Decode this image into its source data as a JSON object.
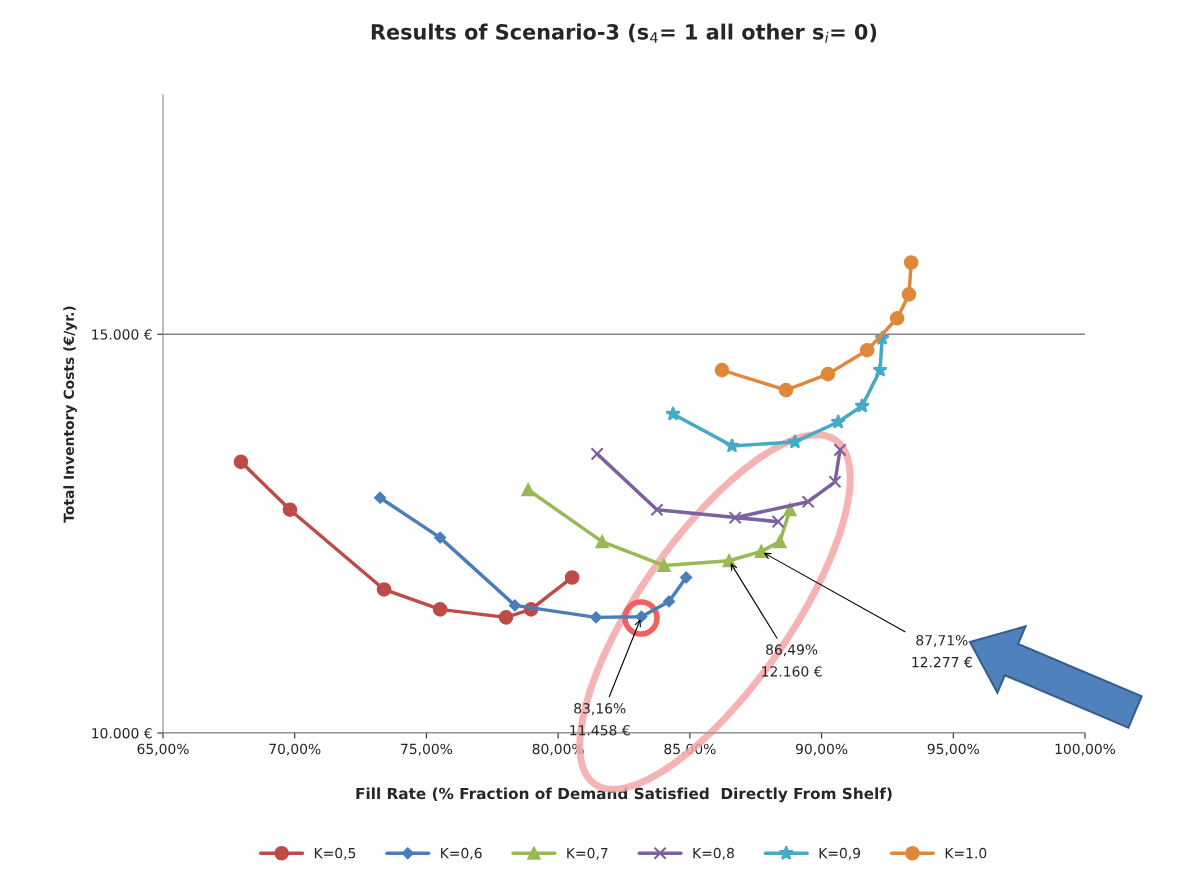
{
  "chart_data": {
    "type": "line",
    "title": "Results of Scenario-3 (s$_{4}$= 1 all other s$_{i}$= 0)",
    "xlabel": "Fill Rate (% Fraction of Demand Satisfied  Directly From Shelf)",
    "ylabel": "Total Inventory Costs (€/yr.)",
    "xlim": [
      65,
      100
    ],
    "ylim": [
      10000,
      18000
    ],
    "xticks": [
      {
        "value": 65,
        "label": "65,00%"
      },
      {
        "value": 70,
        "label": "70,00%"
      },
      {
        "value": 75,
        "label": "75,00%"
      },
      {
        "value": 80,
        "label": "80,00%"
      },
      {
        "value": 85,
        "label": "85,00%"
      },
      {
        "value": 90,
        "label": "90,00%"
      },
      {
        "value": 95,
        "label": "95,00%"
      },
      {
        "value": 100,
        "label": "100,00%"
      }
    ],
    "yticks": [
      {
        "value": 10000,
        "label": "10.000 €"
      },
      {
        "value": 15000,
        "label": "15.000 €"
      }
    ],
    "grid": "y",
    "legend": "bottom",
    "series": [
      {
        "name": "K=0,5",
        "color": "#be4b48",
        "marker": "circle",
        "x": [
          67.96,
          69.82,
          73.39,
          75.52,
          78.02,
          78.97,
          80.53
        ],
        "values": [
          13400,
          12800,
          11800,
          11550,
          11450,
          11550,
          11950
        ]
      },
      {
        "name": "K=0,6",
        "color": "#4a7ebb",
        "marker": "diamond",
        "x": [
          73.24,
          75.52,
          78.36,
          81.44,
          83.16,
          84.21,
          84.86
        ],
        "values": [
          12950,
          12450,
          11600,
          11450,
          11458,
          11650,
          11950
        ]
      },
      {
        "name": "K=0,7",
        "color": "#98b954",
        "marker": "triangle",
        "x": [
          78.86,
          81.67,
          84.02,
          86.49,
          87.71,
          88.42,
          88.8
        ],
        "values": [
          13050,
          12400,
          12100,
          12160,
          12277,
          12400,
          12800
        ]
      },
      {
        "name": "K=0,8",
        "color": "#7d60a0",
        "marker": "cross",
        "x": [
          81.48,
          83.75,
          88.35,
          86.72,
          89.49,
          90.51,
          90.7
        ],
        "values": [
          13500,
          12800,
          12650,
          12700,
          12900,
          13150,
          13550
        ]
      },
      {
        "name": "K=0,9",
        "color": "#46aac5",
        "marker": "star",
        "x": [
          84.36,
          86.6,
          88.99,
          90.63,
          91.54,
          92.22,
          92.3
        ],
        "values": [
          14000,
          13600,
          13650,
          13900,
          14100,
          14550,
          14950
        ]
      },
      {
        "name": "K=1.0",
        "color": "#e0883a",
        "marker": "circle",
        "x": [
          86.22,
          88.65,
          90.24,
          91.73,
          92.87,
          93.32,
          93.4
        ],
        "values": [
          14550,
          14300,
          14500,
          14800,
          15200,
          15500,
          15900
        ]
      }
    ],
    "annotations": [
      {
        "text": "83,16%\n11.458 €",
        "x": 83.16,
        "y": 11458
      },
      {
        "text": "86,49%\n12.160 €",
        "x": 86.49,
        "y": 12160
      },
      {
        "text": "87,71%\n12.277 €",
        "x": 87.71,
        "y": 12277
      }
    ]
  }
}
